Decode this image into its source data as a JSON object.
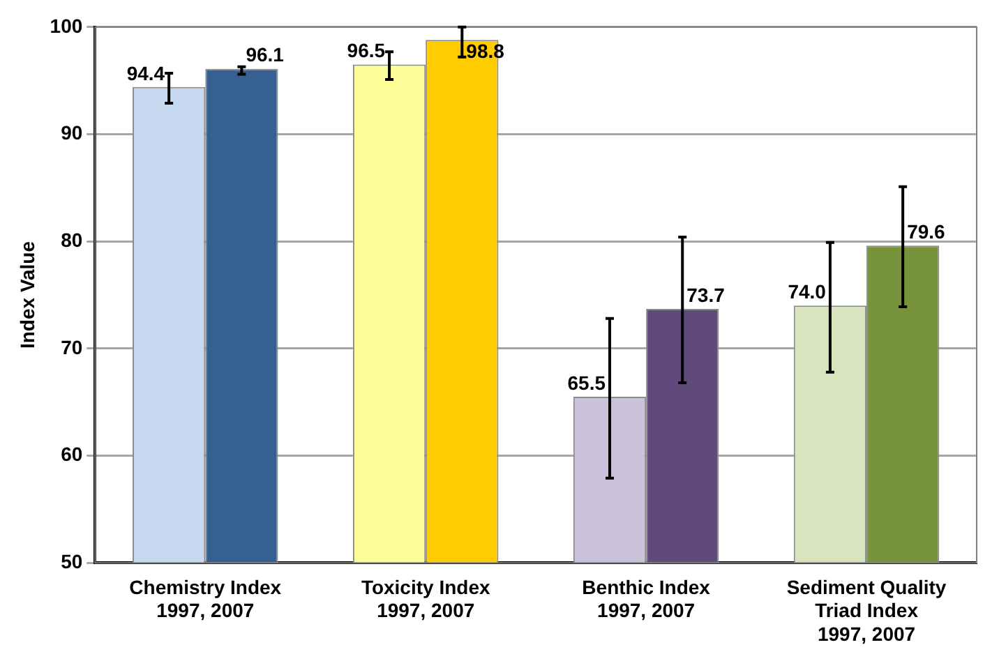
{
  "chart_data": {
    "type": "bar",
    "ylabel": "Index Value",
    "categories": [
      "Chemistry Index\n1997, 2007",
      "Toxicity Index\n1997, 2007",
      "Benthic Index\n1997, 2007",
      "Sediment Quality\nTriad Index\n1997, 2007"
    ],
    "series": [
      {
        "colors": [
          "#c6d9f1",
          "#fdfd9a",
          "#ccc1da",
          "#d7e4bd"
        ],
        "values": [
          94.4,
          96.5,
          65.5,
          74.0
        ],
        "errors": [
          [
            92.9,
            95.7
          ],
          [
            95.1,
            97.7
          ],
          [
            57.9,
            72.8
          ],
          [
            67.8,
            79.9
          ]
        ],
        "value_labels": [
          "94.4",
          "96.5",
          "65.5",
          "74.0"
        ]
      },
      {
        "colors": [
          "#366092",
          "#ffcc00",
          "#604a7b",
          "#77933c"
        ],
        "values": [
          96.1,
          98.8,
          73.7,
          79.6
        ],
        "errors": [
          [
            95.6,
            96.3
          ],
          [
            97.2,
            100
          ],
          [
            66.8,
            80.4
          ],
          [
            73.9,
            85.1
          ]
        ],
        "value_labels": [
          "96.1",
          "98.8",
          "73.7",
          "79.6"
        ]
      }
    ],
    "ylim": [
      50,
      100
    ],
    "yticks": [
      50,
      60,
      70,
      80,
      90,
      100
    ],
    "grid": "y",
    "legend": false
  }
}
